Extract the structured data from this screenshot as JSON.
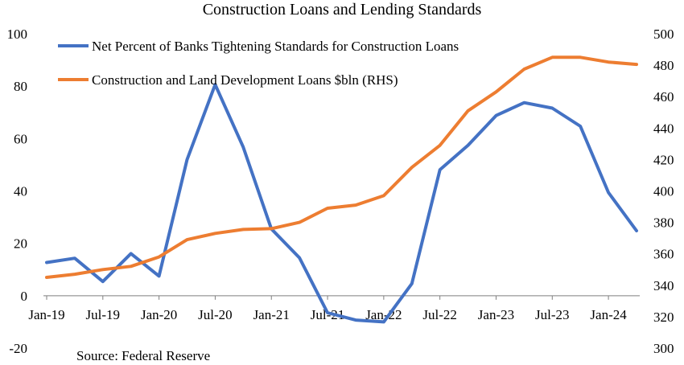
{
  "chart_data": {
    "type": "line",
    "title": "Construction Loans and Lending Standards",
    "source": "Source: Federal Reserve",
    "x_labels": [
      "Jan-19",
      "Jul-19",
      "Jan-20",
      "Jul-20",
      "Jan-21",
      "Jul-21",
      "Jan-22",
      "Jul-22",
      "Jan-23",
      "Jul-23",
      "Jan-24"
    ],
    "x": [
      "2019-01",
      "2019-04",
      "2019-07",
      "2019-10",
      "2020-01",
      "2020-04",
      "2020-07",
      "2020-10",
      "2021-01",
      "2021-04",
      "2021-07",
      "2021-10",
      "2022-01",
      "2022-04",
      "2022-07",
      "2022-10",
      "2023-01",
      "2023-04",
      "2023-07",
      "2023-10",
      "2024-01",
      "2024-04"
    ],
    "left_axis": {
      "ylim": [
        -20,
        100
      ],
      "ticks": [
        "-20",
        "0",
        "20",
        "40",
        "60",
        "80",
        "100"
      ]
    },
    "right_axis": {
      "ylim": [
        300,
        500
      ],
      "ticks": [
        "300",
        "320",
        "340",
        "360",
        "380",
        "400",
        "420",
        "440",
        "460",
        "480",
        "500"
      ]
    },
    "series": [
      {
        "name": "Net Percent of Banks Tightening Standards for Construction Loans",
        "axis": "left",
        "color": "#4472C4",
        "values": [
          12.7,
          14.3,
          5.4,
          16.1,
          7.5,
          52,
          80.6,
          56.7,
          25.5,
          14.5,
          -6.5,
          -9.3,
          -10,
          4.6,
          48.1,
          57.4,
          68.8,
          73.7,
          71.6,
          64.7,
          39.4,
          24.8
        ]
      },
      {
        "name": "Construction and Land Development Loans $bln (RHS)",
        "axis": "right",
        "color": "#ED7D31",
        "values": [
          345,
          347,
          350,
          352,
          358,
          369,
          373,
          375.5,
          376,
          380,
          389,
          391,
          397,
          415,
          429,
          451,
          463,
          477.5,
          485,
          485,
          482,
          480.5
        ]
      }
    ]
  }
}
